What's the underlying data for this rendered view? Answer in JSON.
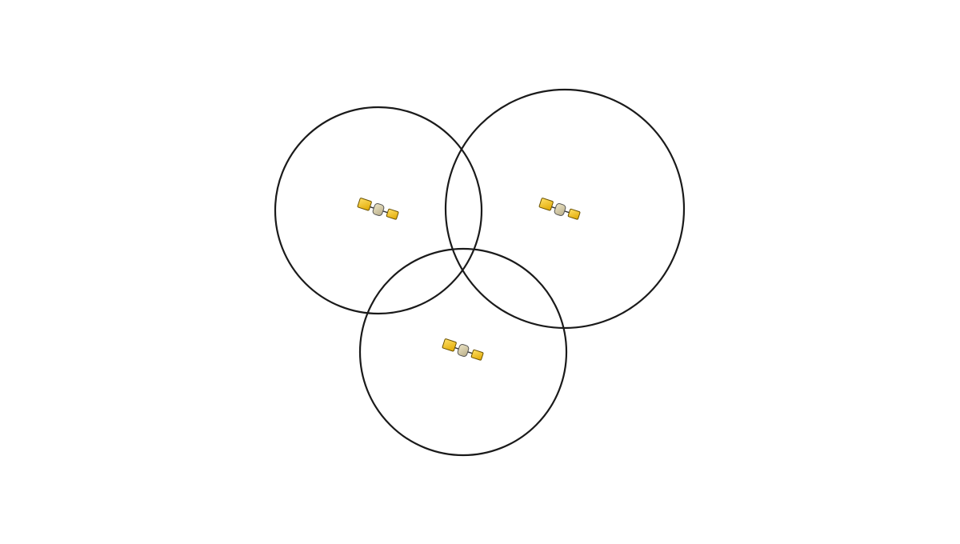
{
  "diagram": {
    "satellites": [
      {
        "icon": "satellite-icon"
      },
      {
        "icon": "satellite-icon"
      },
      {
        "icon": "satellite-icon"
      }
    ],
    "colors": {
      "circle_stroke": "#1a1a1a",
      "panel_fill": "#f2c200",
      "panel_highlight": "#ffe066",
      "body_fill": "#d8cfae",
      "background": "#ffffff"
    }
  }
}
